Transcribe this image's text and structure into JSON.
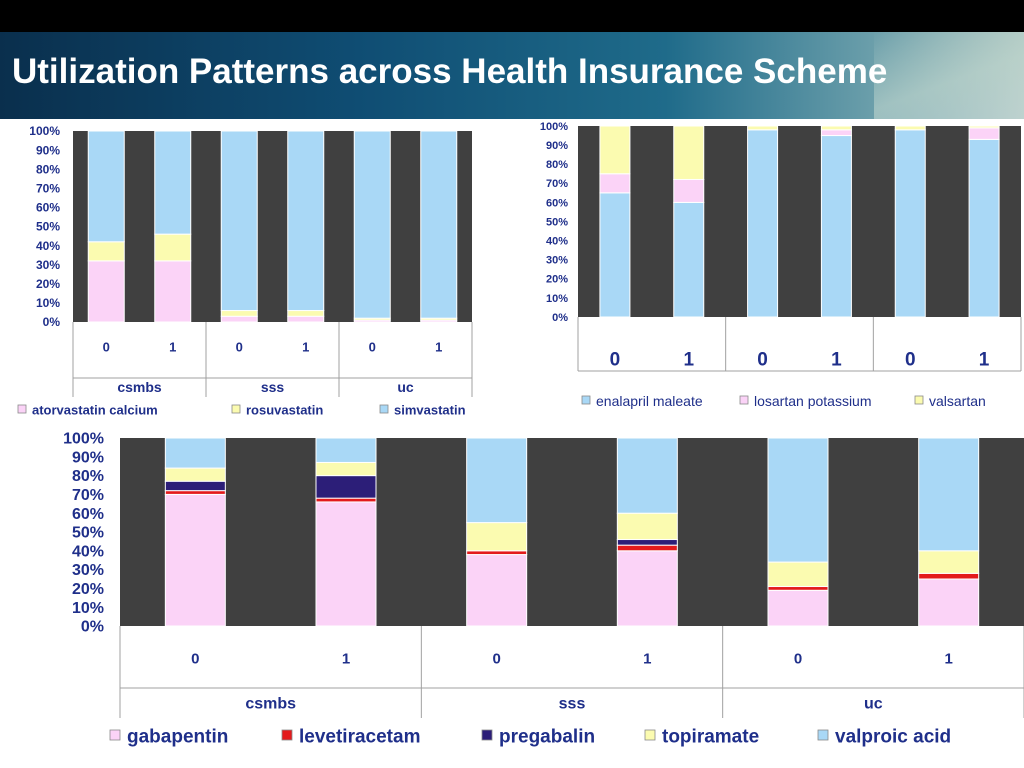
{
  "header": {
    "title": "Utilization Patterns across Health Insurance Scheme"
  },
  "chart_data": [
    {
      "type": "bar",
      "stacked": "percent",
      "categories": [
        "0",
        "1",
        "0",
        "1",
        "0",
        "1"
      ],
      "groups": [
        "csmbs",
        "sss",
        "uc"
      ],
      "yticks": [
        "0%",
        "10%",
        "20%",
        "30%",
        "40%",
        "50%",
        "60%",
        "70%",
        "80%",
        "90%",
        "100%"
      ],
      "ylim": [
        0,
        100
      ],
      "grid": false,
      "legend_position": "bottom",
      "series": [
        {
          "name": "atorvastatin calcium",
          "color": "#fbd3f7",
          "values": [
            32,
            32,
            3,
            3,
            1,
            1
          ]
        },
        {
          "name": "rosuvastatin",
          "color": "#fbfbb0",
          "values": [
            10,
            14,
            3,
            3,
            1,
            1
          ]
        },
        {
          "name": "simvastatin",
          "color": "#a9d8f6",
          "values": [
            58,
            54,
            94,
            94,
            98,
            98
          ]
        }
      ]
    },
    {
      "type": "bar",
      "stacked": "percent",
      "categories": [
        "0",
        "1",
        "0",
        "1",
        "0",
        "1"
      ],
      "groups": [],
      "yticks": [
        "0%",
        "10%",
        "20%",
        "30%",
        "40%",
        "50%",
        "60%",
        "70%",
        "80%",
        "90%",
        "100%"
      ],
      "ylim": [
        0,
        100
      ],
      "grid": false,
      "legend_position": "bottom",
      "series": [
        {
          "name": "enalapril maleate",
          "color": "#a9d8f6",
          "values": [
            65,
            60,
            98,
            95,
            98,
            93
          ]
        },
        {
          "name": "losartan potassium",
          "color": "#fbd3f7",
          "values": [
            10,
            12,
            0,
            3,
            0,
            6
          ]
        },
        {
          "name": "valsartan",
          "color": "#fbfbb0",
          "values": [
            25,
            28,
            2,
            2,
            2,
            1
          ]
        }
      ]
    },
    {
      "type": "bar",
      "stacked": "percent",
      "categories": [
        "0",
        "1",
        "0",
        "1",
        "0",
        "1"
      ],
      "groups": [
        "csmbs",
        "sss",
        "uc"
      ],
      "yticks": [
        "0%",
        "10%",
        "20%",
        "30%",
        "40%",
        "50%",
        "60%",
        "70%",
        "80%",
        "90%",
        "100%"
      ],
      "ylim": [
        0,
        100
      ],
      "grid": false,
      "legend_position": "bottom",
      "series": [
        {
          "name": "gabapentin",
          "color": "#fbd3f7",
          "values": [
            70,
            66,
            38,
            40,
            19,
            25
          ]
        },
        {
          "name": "levetiracetam",
          "color": "#e31a1c",
          "values": [
            2,
            2,
            2,
            3,
            2,
            3
          ]
        },
        {
          "name": "pregabalin",
          "color": "#2c1e78",
          "values": [
            5,
            12,
            0,
            3,
            0,
            0
          ]
        },
        {
          "name": "topiramate",
          "color": "#fbfbb0",
          "values": [
            7,
            7,
            15,
            14,
            13,
            12
          ]
        },
        {
          "name": "valproic acid",
          "color": "#a9d8f6",
          "values": [
            16,
            13,
            45,
            40,
            66,
            60
          ]
        }
      ]
    }
  ]
}
